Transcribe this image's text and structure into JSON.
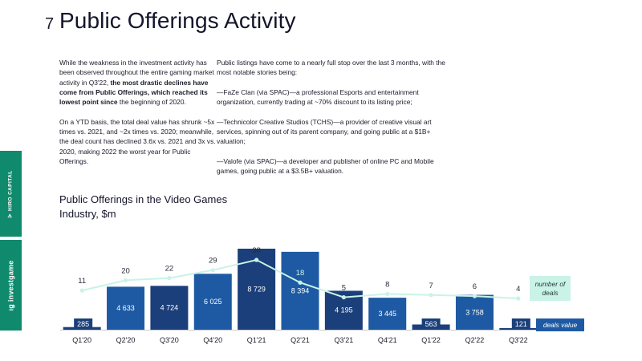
{
  "header": {
    "page_number": "7",
    "title": "Public Offerings Activity"
  },
  "left_text": {
    "p1_plain": "While the weakness in the investment activity has been observed throughout the entire gaming market activity in Q3'22, ",
    "p1_bold": "the most drastic declines have come from Public Offerings, which reached its lowest point since",
    "p1_tail": " the beginning of 2020.",
    "p2": "On a YTD basis, the total deal value has shrunk ~5x times vs. 2021, and ~2x times vs. 2020; meanwhile, the deal count has declined 3.6x vs. 2021 and 3x vs. 2020, making 2022 the worst year for Public Offerings."
  },
  "right_text": {
    "intro": "Public listings have come to a nearly full stop over the last 3 months, with the most notable stories being:",
    "item1": "—FaZe Clan (via SPAC)—a professional Esports and entertainment organization, currently trading at ~70% discount to its listing price;",
    "item2": "—Technicolor Creative Studios (TCHS)—a provider of creative visual art services, spinning out of its parent company, and going public at a $1B+ valuation;",
    "item3": "—Valofe (via SPAC)—a developer and publisher of online PC and Mobile games, going public at a $3.5B+ valuation."
  },
  "sidebar": {
    "top_label": "HIRO CAPITAL",
    "bottom_label": "investgame"
  },
  "legend": {
    "deals": "number of deals",
    "value": "deals value"
  },
  "colors": {
    "bar_dark": "#1b3f7a",
    "bar_light": "#1e5aa3",
    "line": "#c9f3e6",
    "brand_green": "#0f8a6c"
  },
  "chart_data": {
    "type": "bar",
    "title": "Public Offerings in the Video Games Industry, $m",
    "categories": [
      "Q1'20",
      "Q2'20",
      "Q3'20",
      "Q4'20",
      "Q1'21",
      "Q2'21",
      "Q3'21",
      "Q4'21",
      "Q1'22",
      "Q2'22",
      "Q3'22"
    ],
    "series": [
      {
        "name": "deals value",
        "type": "bar",
        "values": [
          285,
          4633,
          4724,
          6025,
          8729,
          8394,
          4195,
          3445,
          563,
          3758,
          121
        ],
        "labels": [
          "285",
          "4 633",
          "4 724",
          "6 025",
          "8 729",
          "8 394",
          "4 195",
          "3 445",
          "563",
          "3 758",
          "121"
        ]
      },
      {
        "name": "number of deals",
        "type": "line",
        "values": [
          11,
          20,
          22,
          29,
          38,
          18,
          5,
          8,
          7,
          6,
          4
        ]
      }
    ]
  }
}
